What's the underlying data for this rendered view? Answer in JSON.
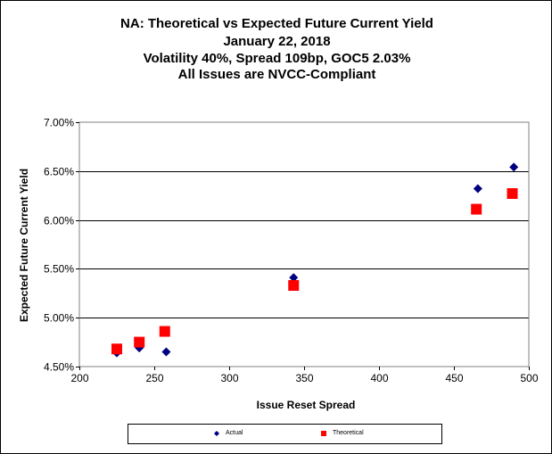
{
  "chart_data": {
    "type": "scatter",
    "title_lines": [
      "NA: Theoretical vs Expected Future Current Yield",
      "January 22, 2018",
      "Volatility 40%, Spread 109bp, GOC5 2.03%",
      "All Issues are NVCC-Compliant"
    ],
    "xlabel": "Issue  Reset Spread",
    "ylabel": "Expected Future Current Yield",
    "xlim": [
      200,
      500
    ],
    "ylim": [
      4.5,
      7.0
    ],
    "x_ticks": [
      200,
      250,
      300,
      350,
      400,
      450,
      500
    ],
    "y_ticks": [
      4.5,
      5.0,
      5.5,
      6.0,
      6.5,
      7.0
    ],
    "y_tick_labels": [
      "4.50%",
      "5.00%",
      "5.50%",
      "6.00%",
      "6.50%",
      "7.00%"
    ],
    "gridlines": "horizontal",
    "legend_position": "bottom",
    "series": [
      {
        "name": "Actual",
        "marker": "diamond",
        "color": "#000080",
        "points": [
          {
            "x": 225,
            "y": 4.64
          },
          {
            "x": 240,
            "y": 4.69
          },
          {
            "x": 258,
            "y": 4.65
          },
          {
            "x": 343,
            "y": 5.41
          },
          {
            "x": 466,
            "y": 6.32
          },
          {
            "x": 490,
            "y": 6.54
          }
        ]
      },
      {
        "name": "Theoretical",
        "marker": "square",
        "color": "#ff0000",
        "points": [
          {
            "x": 225,
            "y": 4.68
          },
          {
            "x": 240,
            "y": 4.75
          },
          {
            "x": 257,
            "y": 4.86
          },
          {
            "x": 343,
            "y": 5.33
          },
          {
            "x": 465,
            "y": 6.11
          },
          {
            "x": 489,
            "y": 6.27
          }
        ]
      }
    ]
  }
}
